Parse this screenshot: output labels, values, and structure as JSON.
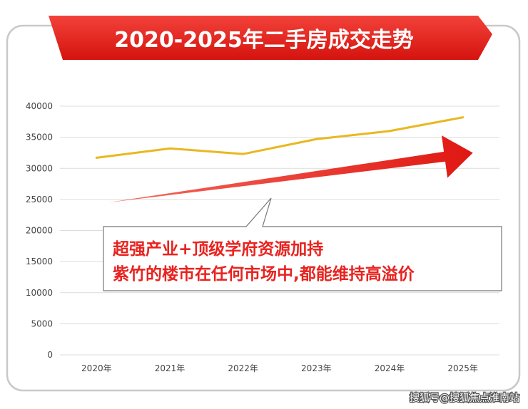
{
  "chart_data": {
    "type": "line",
    "title": "2020-2025年二手房成交走势",
    "categories": [
      "2020年",
      "2021年",
      "2022年",
      "2023年",
      "2024年",
      "2025年"
    ],
    "series": [
      {
        "values": [
          31700,
          33200,
          32300,
          34700,
          36000,
          38200
        ],
        "color": "#e9b820"
      }
    ],
    "ylim": [
      0,
      40000
    ],
    "yticks": [
      0,
      5000,
      10000,
      15000,
      20000,
      25000,
      30000,
      35000,
      40000
    ],
    "grid": true,
    "trend_arrow": {
      "color": "#e8231f",
      "from": {
        "x": "2020年",
        "y": 24500
      },
      "to": {
        "x": "2025年",
        "y": 32500
      }
    }
  },
  "callout": {
    "line1": "超强产业+顶级学府资源加持",
    "line2": "紫竹的楼市在任何市场中,都能维持高溢价"
  },
  "watermark": "搜狐号@搜狐焦点淮南站",
  "colors": {
    "title_banner": "#e3211c",
    "line": "#e9b820",
    "arrow": "#e8231f",
    "callout_text": "#e8231f",
    "grid": "#dcdcdc"
  }
}
